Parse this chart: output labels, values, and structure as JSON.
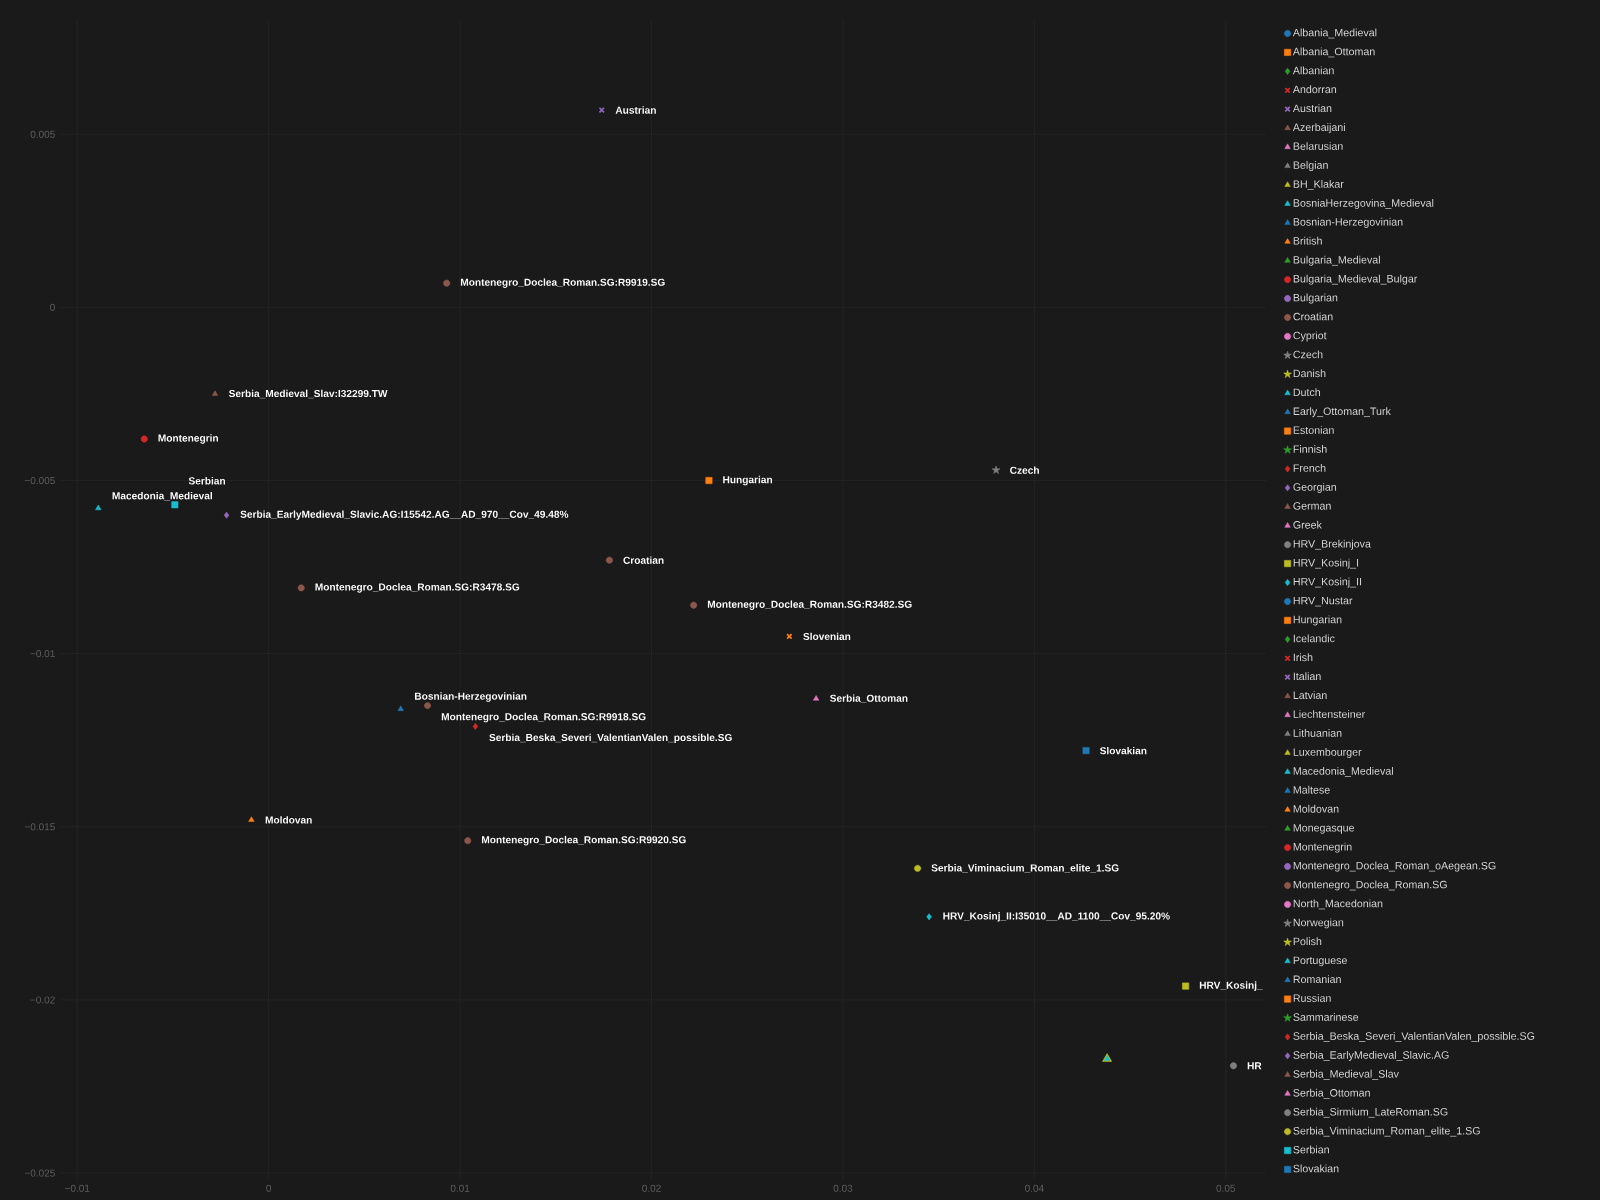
{
  "chart_data": {
    "type": "scatter",
    "grid": true,
    "legend": "right",
    "xlim": [
      -0.0109,
      0.0521
    ],
    "ylim": [
      -0.0252,
      0.0083
    ],
    "xticks": [
      {
        "value": -0.01,
        "label": "−0.01"
      },
      0,
      0.01,
      0.02,
      0.03,
      0.04,
      0.05
    ],
    "yticks": [
      {
        "value": -0.025,
        "label": "−0.025"
      },
      {
        "value": -0.02,
        "label": "−0.02"
      },
      {
        "value": -0.015,
        "label": "−0.015"
      },
      {
        "value": -0.01,
        "label": "−0.01"
      },
      {
        "value": -0.005,
        "label": "−0.005"
      },
      0,
      0.005
    ],
    "series": [
      {
        "name": "Albania_Medieval",
        "color": "#1f77b4",
        "marker": "circle"
      },
      {
        "name": "Albania_Ottoman",
        "color": "#ff7f0e",
        "marker": "square"
      },
      {
        "name": "Albanian",
        "color": "#2ca02c",
        "marker": "diamond"
      },
      {
        "name": "Andorran",
        "color": "#d62728",
        "marker": "cross"
      },
      {
        "name": "Austrian",
        "color": "#9467bd",
        "marker": "cross",
        "x": [
          0.0174
        ],
        "values": [
          0.0057
        ]
      },
      {
        "name": "Azerbaijani",
        "color": "#8c564b",
        "marker": "triangle"
      },
      {
        "name": "Belarusian",
        "color": "#e377c2",
        "marker": "triangle"
      },
      {
        "name": "Belgian",
        "color": "#7f7f7f",
        "marker": "triangle"
      },
      {
        "name": "BH_Klakar",
        "color": "#bcbd22",
        "marker": "triangle",
        "x": [
          0.0438
        ],
        "values": [
          -0.0217
        ]
      },
      {
        "name": "BosniaHerzegovina_Medieval",
        "color": "#17becf",
        "marker": "triangle",
        "x": [
          0.0438
        ],
        "values": [
          -0.0217
        ]
      },
      {
        "name": "Bosnian-Herzegovinian",
        "color": "#1f77b4",
        "marker": "triangle",
        "x": [
          0.0069
        ],
        "values": [
          -0.0116
        ]
      },
      {
        "name": "British",
        "color": "#ff7f0e",
        "marker": "triangle"
      },
      {
        "name": "Bulgaria_Medieval",
        "color": "#2ca02c",
        "marker": "triangle"
      },
      {
        "name": "Bulgaria_Medieval_Bulgar",
        "color": "#d62728",
        "marker": "circle"
      },
      {
        "name": "Bulgarian",
        "color": "#9467bd",
        "marker": "circle"
      },
      {
        "name": "Croatian",
        "color": "#8c564b",
        "marker": "circle",
        "x": [
          0.0178
        ],
        "values": [
          -0.0073
        ]
      },
      {
        "name": "Cypriot",
        "color": "#e377c2",
        "marker": "circle"
      },
      {
        "name": "Czech",
        "color": "#7f7f7f",
        "marker": "star",
        "x": [
          0.038
        ],
        "values": [
          -0.0047
        ]
      },
      {
        "name": "Danish",
        "color": "#bcbd22",
        "marker": "star"
      },
      {
        "name": "Dutch",
        "color": "#17becf",
        "marker": "triangle"
      },
      {
        "name": "Early_Ottoman_Turk",
        "color": "#1f77b4",
        "marker": "triangle"
      },
      {
        "name": "Estonian",
        "color": "#ff7f0e",
        "marker": "square"
      },
      {
        "name": "Finnish",
        "color": "#2ca02c",
        "marker": "star"
      },
      {
        "name": "French",
        "color": "#d62728",
        "marker": "diamond"
      },
      {
        "name": "Georgian",
        "color": "#9467bd",
        "marker": "diamond"
      },
      {
        "name": "German",
        "color": "#8c564b",
        "marker": "triangle"
      },
      {
        "name": "Greek",
        "color": "#e377c2",
        "marker": "triangle"
      },
      {
        "name": "HRV_Brekinjova",
        "color": "#7f7f7f",
        "marker": "circle",
        "x": [
          0.0504
        ],
        "values": [
          -0.0219
        ]
      },
      {
        "name": "HRV_Kosinj_I",
        "color": "#bcbd22",
        "marker": "square",
        "x": [
          0.0479
        ],
        "values": [
          -0.0196
        ]
      },
      {
        "name": "HRV_Kosinj_II",
        "color": "#17becf",
        "marker": "diamond",
        "x": [
          0.0345
        ],
        "values": [
          -0.0176
        ]
      },
      {
        "name": "HRV_Nustar",
        "color": "#1f77b4",
        "marker": "circle"
      },
      {
        "name": "Hungarian",
        "color": "#ff7f0e",
        "marker": "square",
        "x": [
          0.023
        ],
        "values": [
          -0.005
        ]
      },
      {
        "name": "Icelandic",
        "color": "#2ca02c",
        "marker": "diamond"
      },
      {
        "name": "Irish",
        "color": "#d62728",
        "marker": "cross"
      },
      {
        "name": "Italian",
        "color": "#9467bd",
        "marker": "cross"
      },
      {
        "name": "Latvian",
        "color": "#8c564b",
        "marker": "triangle"
      },
      {
        "name": "Liechtensteiner",
        "color": "#e377c2",
        "marker": "triangle"
      },
      {
        "name": "Lithuanian",
        "color": "#7f7f7f",
        "marker": "triangle"
      },
      {
        "name": "Luxembourger",
        "color": "#bcbd22",
        "marker": "triangle"
      },
      {
        "name": "Macedonia_Medieval",
        "color": "#17becf",
        "marker": "triangle",
        "x": [
          -0.0089
        ],
        "values": [
          -0.0058
        ]
      },
      {
        "name": "Maltese",
        "color": "#1f77b4",
        "marker": "triangle"
      },
      {
        "name": "Moldovan",
        "color": "#ff7f0e",
        "marker": "triangle",
        "x": [
          -0.0009
        ],
        "values": [
          -0.0148
        ]
      },
      {
        "name": "Monegasque",
        "color": "#2ca02c",
        "marker": "triangle"
      },
      {
        "name": "Montenegrin",
        "color": "#d62728",
        "marker": "circle",
        "x": [
          -0.0065
        ],
        "values": [
          -0.0038
        ]
      },
      {
        "name": "Montenegro_Doclea_Roman_oAegean.SG",
        "color": "#9467bd",
        "marker": "circle"
      },
      {
        "name": "Montenegro_Doclea_Roman.SG",
        "color": "#8c564b",
        "marker": "circle",
        "x": [
          0.0093,
          0.0017,
          0.0222,
          0.0083,
          0.0104
        ],
        "values": [
          0.0007,
          -0.0081,
          -0.0086,
          -0.0115,
          -0.0154
        ]
      },
      {
        "name": "North_Macedonian",
        "color": "#e377c2",
        "marker": "circle"
      },
      {
        "name": "Norwegian",
        "color": "#7f7f7f",
        "marker": "star"
      },
      {
        "name": "Polish",
        "color": "#bcbd22",
        "marker": "star"
      },
      {
        "name": "Portuguese",
        "color": "#17becf",
        "marker": "triangle"
      },
      {
        "name": "Romanian",
        "color": "#1f77b4",
        "marker": "triangle"
      },
      {
        "name": "Russian",
        "color": "#ff7f0e",
        "marker": "square"
      },
      {
        "name": "Sammarinese",
        "color": "#2ca02c",
        "marker": "star"
      },
      {
        "name": "Serbia_Beska_Severi_ValentianValen_possible.SG",
        "color": "#d62728",
        "marker": "diamond",
        "x": [
          0.0108
        ],
        "values": [
          -0.0121
        ]
      },
      {
        "name": "Serbia_EarlyMedieval_Slavic.AG",
        "color": "#9467bd",
        "marker": "diamond",
        "x": [
          -0.0022
        ],
        "values": [
          -0.006
        ]
      },
      {
        "name": "Serbia_Medieval_Slav",
        "color": "#8c564b",
        "marker": "triangle",
        "x": [
          -0.0028
        ],
        "values": [
          -0.0025
        ]
      },
      {
        "name": "Serbia_Ottoman",
        "color": "#e377c2",
        "marker": "triangle",
        "x": [
          0.0286
        ],
        "values": [
          -0.0113
        ]
      },
      {
        "name": "Serbia_Sirmium_LateRoman.SG",
        "color": "#7f7f7f",
        "marker": "circle"
      },
      {
        "name": "Serbia_Viminacium_Roman_elite_1.SG",
        "color": "#bcbd22",
        "marker": "circle",
        "x": [
          0.0339
        ],
        "values": [
          -0.0162
        ]
      },
      {
        "name": "Serbian",
        "color": "#17becf",
        "marker": "square",
        "x": [
          -0.0049
        ],
        "values": [
          -0.0057
        ]
      },
      {
        "name": "Slovakian",
        "color": "#1f77b4",
        "marker": "square",
        "x": [
          0.0427
        ],
        "values": [
          -0.0128
        ]
      },
      {
        "color": "#ff7f0e",
        "marker": "cross",
        "x": [
          0.0272
        ],
        "values": [
          -0.0095
        ]
      }
    ],
    "annotations": [
      {
        "text": "Austrian",
        "x": 0.0174,
        "y": 0.0057
      },
      {
        "text": "Montenegro_Doclea_Roman.SG:R9919.SG",
        "x": 0.0093,
        "y": 0.0007
      },
      {
        "text": "Serbia_Medieval_Slav:I32299.TW",
        "x": -0.0028,
        "y": -0.0025
      },
      {
        "text": "Montenegrin",
        "x": -0.0065,
        "y": -0.0038
      },
      {
        "text": "Hungarian",
        "x": 0.023,
        "y": -0.005
      },
      {
        "text": "Czech",
        "x": 0.038,
        "y": -0.0047
      },
      {
        "text": "Macedonia_Medieval",
        "x": -0.0089,
        "y": -0.0058
      },
      {
        "text": "Serbian",
        "x": -0.0049,
        "y": -0.0057
      },
      {
        "text": "Serbia_EarlyMedieval_Slavic.AG:I15542.AG__AD_970__Cov_49.48%",
        "x": -0.0022,
        "y": -0.006
      },
      {
        "text": "Croatian",
        "x": 0.0178,
        "y": -0.0073
      },
      {
        "text": "Montenegro_Doclea_Roman.SG:R3478.SG",
        "x": 0.0017,
        "y": -0.0081
      },
      {
        "text": "Montenegro_Doclea_Roman.SG:R3482.SG",
        "x": 0.0222,
        "y": -0.0086
      },
      {
        "text": "Slovenian",
        "x": 0.0272,
        "y": -0.0095
      },
      {
        "text": "Serbia_Ottoman",
        "x": 0.0286,
        "y": -0.0113
      },
      {
        "text": "Bosnian-Herzegovinian",
        "x": 0.0069,
        "y": -0.0116
      },
      {
        "text": "Montenegro_Doclea_Roman.SG:R9918.SG",
        "x": 0.0083,
        "y": -0.0115
      },
      {
        "text": "Serbia_Beska_Severi_ValentianValen_possible.SG",
        "x": 0.0108,
        "y": -0.0121
      },
      {
        "text": "Slovakian",
        "x": 0.0427,
        "y": -0.0128
      },
      {
        "text": "Moldovan",
        "x": -0.0009,
        "y": -0.0148
      },
      {
        "text": "Montenegro_Doclea_Roman.SG:R9920.SG",
        "x": 0.0104,
        "y": -0.0154
      },
      {
        "text": "Serbia_Viminacium_Roman_elite_1.SG",
        "x": 0.0339,
        "y": -0.0162
      },
      {
        "text": "HRV_Kosinj_II:I35010__AD_1100__Cov_95.20%",
        "x": 0.0345,
        "y": -0.0176
      },
      {
        "text": "HRV_Kosinj_",
        "x": 0.0479,
        "y": -0.0196
      },
      {
        "text": "HR",
        "x": 0.0504,
        "y": -0.0219
      }
    ]
  }
}
